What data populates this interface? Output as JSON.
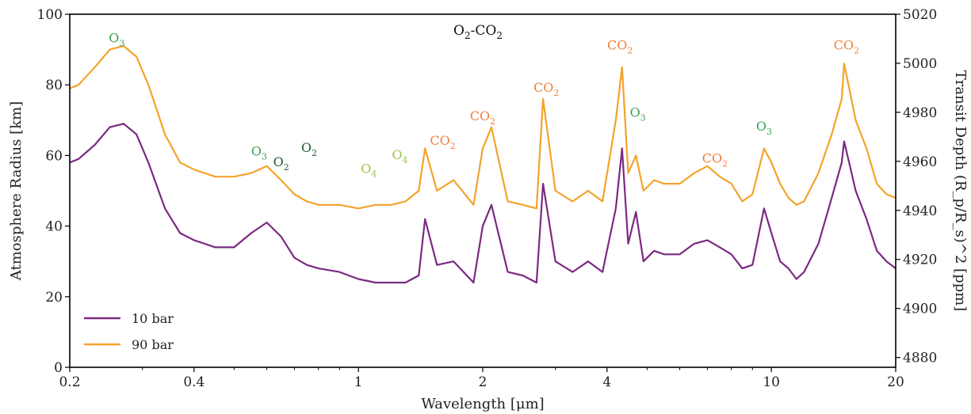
{
  "chart_data": {
    "type": "line",
    "title": "O$_2$-CO$_2$",
    "title_parts": [
      "O",
      "2",
      "-CO",
      "2"
    ],
    "xlabel": "Wavelength [μm]",
    "ylabel_left": "Atmosphere Radius [km]",
    "ylabel_right": "Transit Depth (R_p/R_s)^2 [ppm]",
    "xscale": "log",
    "xlim": [
      0.2,
      20
    ],
    "ylim_left": [
      0,
      100
    ],
    "ylim_right": [
      4876,
      5020
    ],
    "x_ticks": [
      0.2,
      0.4,
      1,
      2,
      4,
      10,
      20
    ],
    "x_tick_labels": [
      "0.2",
      "0.4",
      "1",
      "2",
      "4",
      "10",
      "20"
    ],
    "y_left_ticks": [
      0,
      20,
      40,
      60,
      80,
      100
    ],
    "y_left_tick_labels": [
      "0",
      "20",
      "40",
      "60",
      "80",
      "100"
    ],
    "y_right_ticks": [
      4880,
      4900,
      4920,
      4940,
      4960,
      4980,
      5000,
      5020
    ],
    "y_right_tick_labels": [
      "4880",
      "4900",
      "4920",
      "4940",
      "4960",
      "4980",
      "5000",
      "5020"
    ],
    "legend": {
      "position": "lower-left",
      "entries": [
        "10 bar",
        "90 bar"
      ]
    },
    "grid": false,
    "series": [
      {
        "name": "10 bar",
        "color": "#7b2a82",
        "x": [
          0.2,
          0.21,
          0.23,
          0.25,
          0.27,
          0.29,
          0.31,
          0.34,
          0.37,
          0.4,
          0.45,
          0.5,
          0.55,
          0.6,
          0.65,
          0.7,
          0.75,
          0.8,
          0.9,
          1.0,
          1.1,
          1.2,
          1.3,
          1.4,
          1.45,
          1.55,
          1.7,
          1.9,
          2.0,
          2.1,
          2.3,
          2.5,
          2.7,
          2.8,
          3.0,
          3.3,
          3.6,
          3.9,
          4.2,
          4.35,
          4.5,
          4.7,
          4.9,
          5.2,
          5.5,
          6.0,
          6.5,
          7.0,
          7.5,
          8.0,
          8.5,
          9.0,
          9.6,
          10.0,
          10.5,
          11.0,
          11.5,
          12.0,
          13.0,
          14.0,
          14.8,
          15.0,
          15.5,
          16.0,
          17.0,
          18.0,
          19.0,
          20.0
        ],
        "y": [
          58,
          59,
          63,
          68,
          69,
          66,
          58,
          45,
          38,
          36,
          34,
          34,
          38,
          41,
          37,
          31,
          29,
          28,
          27,
          25,
          24,
          24,
          24,
          26,
          42,
          29,
          30,
          24,
          40,
          46,
          27,
          26,
          24,
          52,
          30,
          27,
          30,
          27,
          45,
          62,
          35,
          44,
          30,
          33,
          32,
          32,
          35,
          36,
          34,
          32,
          28,
          29,
          45,
          38,
          30,
          28,
          25,
          27,
          35,
          48,
          58,
          64,
          57,
          50,
          42,
          33,
          30,
          28
        ]
      },
      {
        "name": "90 bar",
        "color": "#f4a32b",
        "x": [
          0.2,
          0.21,
          0.23,
          0.25,
          0.27,
          0.29,
          0.31,
          0.34,
          0.37,
          0.4,
          0.45,
          0.5,
          0.55,
          0.6,
          0.65,
          0.7,
          0.75,
          0.8,
          0.9,
          1.0,
          1.1,
          1.2,
          1.3,
          1.4,
          1.45,
          1.55,
          1.7,
          1.9,
          2.0,
          2.1,
          2.3,
          2.5,
          2.7,
          2.8,
          3.0,
          3.3,
          3.6,
          3.9,
          4.2,
          4.35,
          4.5,
          4.7,
          4.9,
          5.2,
          5.5,
          6.0,
          6.5,
          7.0,
          7.5,
          8.0,
          8.5,
          9.0,
          9.6,
          10.0,
          10.5,
          11.0,
          11.5,
          12.0,
          13.0,
          14.0,
          14.8,
          15.0,
          15.5,
          16.0,
          17.0,
          18.0,
          19.0,
          20.0
        ],
        "y": [
          79,
          80,
          85,
          90,
          91,
          88,
          80,
          66,
          58,
          56,
          54,
          54,
          55,
          57,
          53,
          49,
          47,
          46,
          46,
          45,
          46,
          46,
          47,
          50,
          62,
          50,
          53,
          46,
          62,
          68,
          47,
          46,
          45,
          76,
          50,
          47,
          50,
          47,
          70,
          85,
          55,
          60,
          50,
          53,
          52,
          52,
          55,
          57,
          54,
          52,
          47,
          49,
          62,
          58,
          52,
          48,
          46,
          47,
          55,
          66,
          76,
          86,
          78,
          70,
          62,
          52,
          49,
          48
        ]
      }
    ],
    "annotations": [
      {
        "text": "O3",
        "main": "O",
        "sub": "3",
        "x": 0.26,
        "y": 92,
        "color": "#3aa35a"
      },
      {
        "text": "O3",
        "main": "O",
        "sub": "3",
        "x": 0.575,
        "y": 60,
        "color": "#3aa35a"
      },
      {
        "text": "O2",
        "main": "O",
        "sub": "2",
        "x": 0.65,
        "y": 57,
        "color": "#1f5c2e"
      },
      {
        "text": "O2",
        "main": "O",
        "sub": "2",
        "x": 0.76,
        "y": 61,
        "color": "#1f5c2e"
      },
      {
        "text": "O4",
        "main": "O",
        "sub": "4",
        "x": 1.06,
        "y": 55,
        "color": "#9cc64a"
      },
      {
        "text": "O4",
        "main": "O",
        "sub": "4",
        "x": 1.26,
        "y": 59,
        "color": "#9cc64a"
      },
      {
        "text": "CO2",
        "main": "CO",
        "sub": "2",
        "x": 1.6,
        "y": 63,
        "color": "#f0803c"
      },
      {
        "text": "CO2",
        "main": "CO",
        "sub": "2",
        "x": 2.0,
        "y": 70,
        "color": "#f0803c"
      },
      {
        "text": "CO2",
        "main": "CO",
        "sub": "2",
        "x": 2.85,
        "y": 78,
        "color": "#f0803c"
      },
      {
        "text": "CO2",
        "main": "CO",
        "sub": "2",
        "x": 4.3,
        "y": 90,
        "color": "#f0803c"
      },
      {
        "text": "O3",
        "main": "O",
        "sub": "3",
        "x": 4.75,
        "y": 71,
        "color": "#3aa35a"
      },
      {
        "text": "CO2",
        "main": "CO",
        "sub": "2",
        "x": 7.3,
        "y": 58,
        "color": "#f0803c"
      },
      {
        "text": "O3",
        "main": "O",
        "sub": "3",
        "x": 9.6,
        "y": 67,
        "color": "#3aa35a"
      },
      {
        "text": "CO2",
        "main": "CO",
        "sub": "2",
        "x": 15.2,
        "y": 90,
        "color": "#f0803c"
      }
    ]
  }
}
